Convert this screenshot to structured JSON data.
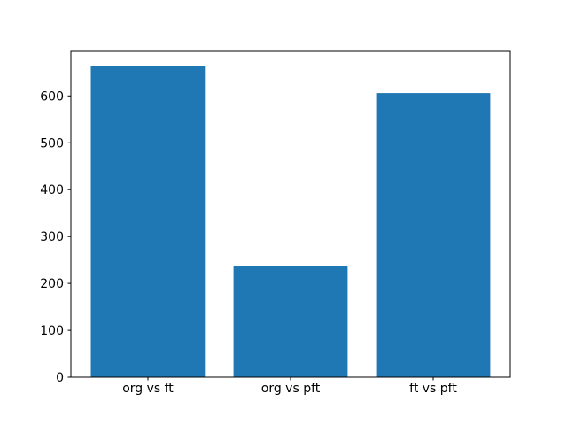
{
  "chart_data": {
    "type": "bar",
    "categories": [
      "org vs ft",
      "org vs pft",
      "ft vs pft"
    ],
    "values": [
      663,
      238,
      606
    ],
    "title": "",
    "xlabel": "",
    "ylabel": "",
    "ylim": [
      0,
      695
    ],
    "yticks": [
      0,
      100,
      200,
      300,
      400,
      500,
      600
    ],
    "bar_color": "#1f77b4",
    "axis_color": "#000000",
    "text_color": "#000000",
    "background_color": "#ffffff",
    "grid": false,
    "legend": "none",
    "bar_width_fraction": 0.8,
    "x_edge_margin": 0.54
  }
}
